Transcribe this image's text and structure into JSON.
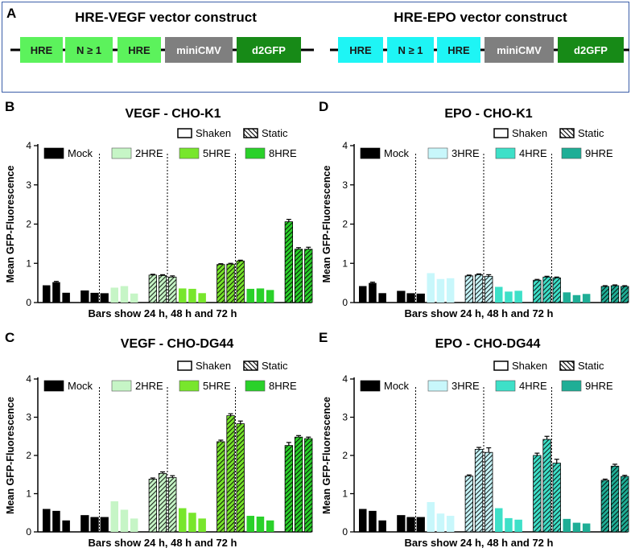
{
  "panel_a": {
    "label": "A",
    "constructs": [
      {
        "title": "HRE-VEGF vector construct",
        "elements": [
          {
            "label": "HRE",
            "color": "#5cf25c"
          },
          {
            "label": "N ≥ 1",
            "color": "#5cf25c"
          },
          {
            "label": "HRE",
            "color": "#5cf25c"
          },
          {
            "label": "miniCMV",
            "color": "#7f7f7f"
          },
          {
            "label": "d2GFP",
            "color": "#178a17"
          }
        ]
      },
      {
        "title": "HRE-EPO vector construct",
        "elements": [
          {
            "label": "HRE",
            "color": "#1ef5f5"
          },
          {
            "label": "N ≥ 1",
            "color": "#1ef5f5"
          },
          {
            "label": "HRE",
            "color": "#1ef5f5"
          },
          {
            "label": "miniCMV",
            "color": "#7f7f7f"
          },
          {
            "label": "d2GFP",
            "color": "#178a17"
          }
        ]
      }
    ]
  },
  "chart_data": [
    {
      "panel": "B",
      "type": "bar",
      "title": "VEGF - CHO-K1",
      "ylabel": "Mean GFP-Fluorescence",
      "xlabel": "Bars show 24 h, 48 h and 72 h",
      "ylim": [
        0,
        4
      ],
      "yticks": [
        "0",
        "1",
        "2",
        "3",
        "4"
      ],
      "pattern_legend": [
        "Shaken",
        "Static"
      ],
      "groups": [
        {
          "name": "Mock",
          "color": "#000000",
          "shaken": [
            0.44,
            0.52,
            0.25
          ],
          "static": [
            0.3,
            0.24,
            0.23
          ],
          "shaken_err": [
            0.01,
            0.02,
            0.01
          ],
          "static_err": [
            0.01,
            0.01,
            0.01
          ]
        },
        {
          "name": "2HRE",
          "color": "#c6f5c6",
          "shaken": [
            0.38,
            0.42,
            0.23
          ],
          "static": [
            0.7,
            0.69,
            0.65
          ],
          "shaken_err": [
            0.01,
            0.01,
            0.01
          ],
          "static_err": [
            0.02,
            0.02,
            0.03
          ]
        },
        {
          "name": "5HRE",
          "color": "#78e62c",
          "shaken": [
            0.36,
            0.35,
            0.24
          ],
          "static": [
            0.97,
            0.98,
            1.06
          ],
          "shaken_err": [
            0.01,
            0.01,
            0.01
          ],
          "static_err": [
            0.02,
            0.02,
            0.02
          ]
        },
        {
          "name": "8HRE",
          "color": "#2ad12a",
          "shaken": [
            0.35,
            0.36,
            0.32
          ],
          "static": [
            2.06,
            1.36,
            1.36
          ],
          "shaken_err": [
            0.01,
            0.01,
            0.01
          ],
          "static_err": [
            0.06,
            0.04,
            0.05
          ]
        }
      ]
    },
    {
      "panel": "D",
      "type": "bar",
      "title": "EPO - CHO-K1",
      "ylabel": "Mean GFP-Fluorescence",
      "xlabel": "Bars show 24 h, 48 h and 72 h",
      "ylim": [
        0,
        4
      ],
      "yticks": [
        "0",
        "1",
        "2",
        "3",
        "4"
      ],
      "pattern_legend": [
        "Shaken",
        "Static"
      ],
      "groups": [
        {
          "name": "Mock",
          "color": "#000000",
          "shaken": [
            0.42,
            0.5,
            0.24
          ],
          "static": [
            0.29,
            0.23,
            0.22
          ],
          "shaken_err": [
            0.01,
            0.02,
            0.01
          ],
          "static_err": [
            0.01,
            0.01,
            0.01
          ]
        },
        {
          "name": "3HRE",
          "color": "#c8f7fb",
          "shaken": [
            0.75,
            0.6,
            0.62
          ],
          "static": [
            0.68,
            0.71,
            0.67
          ],
          "shaken_err": [
            0.01,
            0.01,
            0.01
          ],
          "static_err": [
            0.02,
            0.02,
            0.04
          ]
        },
        {
          "name": "4HRE",
          "color": "#3ee0c8",
          "shaken": [
            0.4,
            0.28,
            0.3
          ],
          "static": [
            0.57,
            0.65,
            0.63
          ],
          "shaken_err": [
            0.01,
            0.01,
            0.01
          ],
          "static_err": [
            0.02,
            0.02,
            0.02
          ]
        },
        {
          "name": "9HRE",
          "color": "#1fae96",
          "shaken": [
            0.26,
            0.19,
            0.22
          ],
          "static": [
            0.41,
            0.43,
            0.41
          ],
          "shaken_err": [
            0.01,
            0.01,
            0.01
          ],
          "static_err": [
            0.02,
            0.02,
            0.02
          ]
        }
      ]
    },
    {
      "panel": "C",
      "type": "bar",
      "title": "VEGF - CHO-DG44",
      "ylabel": "Mean GFP-Fluorescence",
      "xlabel": "Bars show 24 h, 48 h and 72 h",
      "ylim": [
        0,
        4
      ],
      "yticks": [
        "0",
        "1",
        "2",
        "3",
        "4"
      ],
      "pattern_legend": [
        "Shaken",
        "Static"
      ],
      "groups": [
        {
          "name": "Mock",
          "color": "#000000",
          "shaken": [
            0.6,
            0.55,
            0.3
          ],
          "static": [
            0.43,
            0.38,
            0.38
          ],
          "shaken_err": [
            0.01,
            0.01,
            0.01
          ],
          "static_err": [
            0.01,
            0.01,
            0.01
          ]
        },
        {
          "name": "2HRE",
          "color": "#c6f5c6",
          "shaken": [
            0.8,
            0.58,
            0.35
          ],
          "static": [
            1.38,
            1.53,
            1.42
          ],
          "shaken_err": [
            0.01,
            0.01,
            0.01
          ],
          "static_err": [
            0.03,
            0.04,
            0.05
          ]
        },
        {
          "name": "5HRE",
          "color": "#78e62c",
          "shaken": [
            0.62,
            0.5,
            0.35
          ],
          "static": [
            2.36,
            3.04,
            2.83
          ],
          "shaken_err": [
            0.01,
            0.01,
            0.01
          ],
          "static_err": [
            0.04,
            0.05,
            0.07
          ]
        },
        {
          "name": "8HRE",
          "color": "#2ad12a",
          "shaken": [
            0.42,
            0.4,
            0.3
          ],
          "static": [
            2.26,
            2.48,
            2.44
          ],
          "shaken_err": [
            0.01,
            0.01,
            0.01
          ],
          "static_err": [
            0.08,
            0.04,
            0.04
          ]
        }
      ]
    },
    {
      "panel": "E",
      "type": "bar",
      "title": "EPO - CHO-DG44",
      "ylabel": "Mean GFP-Fluorescence",
      "xlabel": "Bars show 24 h, 48 h and 72 h",
      "ylim": [
        0,
        4
      ],
      "yticks": [
        "0",
        "1",
        "2",
        "3",
        "4"
      ],
      "pattern_legend": [
        "Shaken",
        "Static"
      ],
      "groups": [
        {
          "name": "Mock",
          "color": "#000000",
          "shaken": [
            0.6,
            0.55,
            0.3
          ],
          "static": [
            0.43,
            0.38,
            0.38
          ],
          "shaken_err": [
            0.01,
            0.01,
            0.01
          ],
          "static_err": [
            0.01,
            0.01,
            0.01
          ]
        },
        {
          "name": "3HRE",
          "color": "#c8f7fb",
          "shaken": [
            0.78,
            0.48,
            0.42
          ],
          "static": [
            1.46,
            2.16,
            2.08
          ],
          "shaken_err": [
            0.01,
            0.01,
            0.01
          ],
          "static_err": [
            0.03,
            0.05,
            0.12
          ]
        },
        {
          "name": "4HRE",
          "color": "#3ee0c8",
          "shaken": [
            0.62,
            0.36,
            0.32
          ],
          "static": [
            2.0,
            2.42,
            1.8
          ],
          "shaken_err": [
            0.01,
            0.01,
            0.01
          ],
          "static_err": [
            0.06,
            0.08,
            0.1
          ]
        },
        {
          "name": "9HRE",
          "color": "#1fae96",
          "shaken": [
            0.34,
            0.24,
            0.22
          ],
          "static": [
            1.35,
            1.72,
            1.45
          ],
          "shaken_err": [
            0.01,
            0.01,
            0.01
          ],
          "static_err": [
            0.03,
            0.05,
            0.03
          ]
        }
      ]
    }
  ]
}
